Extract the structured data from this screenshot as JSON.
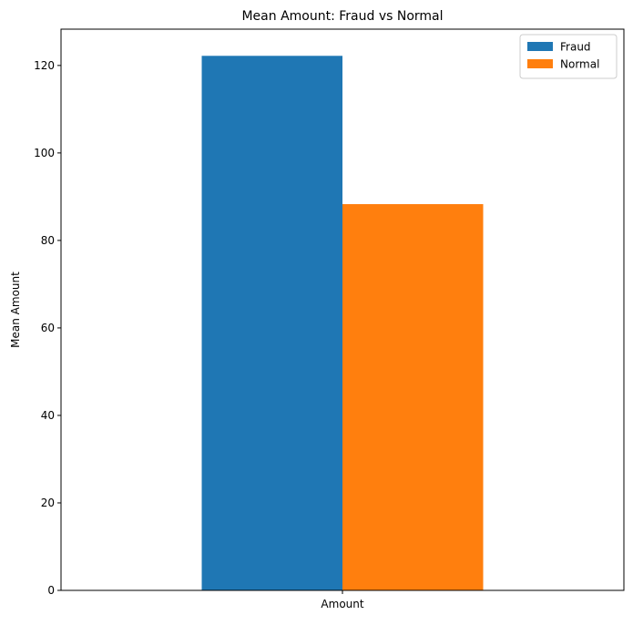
{
  "chart_data": {
    "type": "bar",
    "title": "Mean Amount: Fraud vs Normal",
    "xlabel": "",
    "ylabel": "Mean Amount",
    "categories": [
      "Amount"
    ],
    "series": [
      {
        "name": "Fraud",
        "values": [
          122.2
        ],
        "color": "#1f77b4"
      },
      {
        "name": "Normal",
        "values": [
          88.3
        ],
        "color": "#ff7f0e"
      }
    ],
    "ylim": [
      0,
      128.3
    ],
    "yticks": [
      0,
      20,
      40,
      60,
      80,
      100,
      120
    ],
    "grid": false,
    "legend_position": "top-right"
  }
}
